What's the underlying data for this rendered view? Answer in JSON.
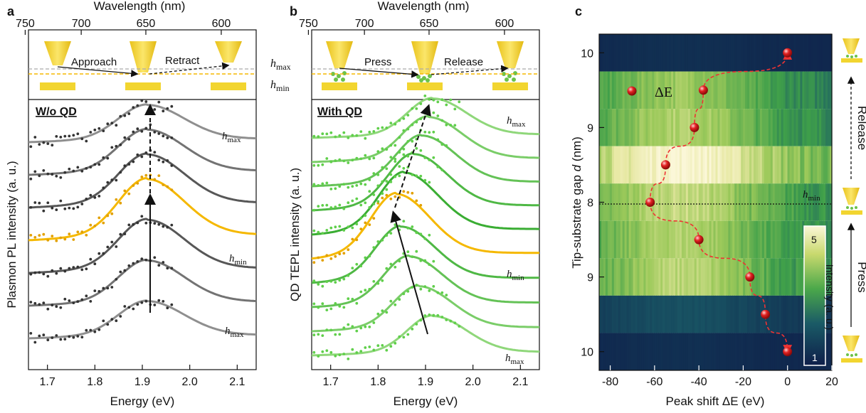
{
  "panels": {
    "a": {
      "letter": "a",
      "label": "W/o QD",
      "ylabel": "Plasmon PL intensity (a. u.)"
    },
    "b": {
      "letter": "b",
      "label": "With QD",
      "ylabel": "QD TEPL intensity (a. u.)"
    },
    "c": {
      "letter": "c"
    }
  },
  "labels": {
    "h_sym": "h",
    "max_sub": "max",
    "min_sub": "min",
    "approach": "Approach",
    "retract": "Retract",
    "press": "Press",
    "release": "Release",
    "delta_e": "ΔE",
    "intensity": "Intensity (a. u.)"
  },
  "colors": {
    "highlight": "#f5b800",
    "tip": "#f2d530",
    "gray_dark": "#3b3b3b",
    "gray_light": "#8f8f8f",
    "green_dark": "#2fa82a",
    "green_light": "#8fd77a",
    "sphere": "#e32222"
  },
  "chart_data": [
    {
      "type": "line",
      "panel": "a",
      "xlabel": "Energy (eV)",
      "ylabel": "Plasmon PL intensity (a. u.)",
      "xlim": [
        1.66,
        2.14
      ],
      "xticks": [
        1.7,
        1.8,
        1.9,
        2.0,
        2.1
      ],
      "top_axis_label": "Wavelength (nm)",
      "top_ticks_nm": [
        750,
        700,
        650,
        600
      ],
      "peak_centers": [
        1.91,
        1.91,
        1.91,
        1.91,
        1.91,
        1.91,
        1.91
      ],
      "highlight_index": 3,
      "annotations": [
        "h_max (top)",
        "h_min",
        "h_max (bottom)"
      ]
    },
    {
      "type": "line",
      "panel": "b",
      "xlabel": "Energy (eV)",
      "ylabel": "QD TEPL intensity (a. u.)",
      "xlim": [
        1.66,
        2.14
      ],
      "xticks": [
        1.7,
        1.8,
        1.9,
        2.0,
        2.1
      ],
      "top_axis_label": "Wavelength (nm)",
      "top_ticks_nm": [
        750,
        700,
        650,
        600
      ],
      "peak_centers": [
        1.915,
        1.885,
        1.865,
        1.848,
        1.838,
        1.855,
        1.875,
        1.892,
        1.905,
        1.915
      ],
      "highlight_index": 4,
      "annotations": [
        "h_max (top)",
        "h_min",
        "h_max (bottom)"
      ]
    },
    {
      "type": "heatmap",
      "panel": "c",
      "xlabel": "Peak shift ΔE (eV)",
      "ylabel": "Tip-substrate gap d (nm)",
      "xlim": [
        -85,
        20
      ],
      "xticks": [
        -80,
        -60,
        -40,
        -20,
        0,
        20
      ],
      "ytick_labels": [
        "10",
        "9",
        "8",
        "9",
        "10"
      ],
      "colorbar": {
        "min": 1,
        "max": 5,
        "label": "Intensity (a. u.)"
      },
      "row_brightness": [
        0.05,
        0.55,
        0.6,
        0.9,
        0.65,
        0.6,
        0.62,
        0.15,
        0.05
      ],
      "points": [
        {
          "x": 0,
          "gap": 10,
          "phase": "press"
        },
        {
          "x": -10,
          "gap": 9.5,
          "phase": "press"
        },
        {
          "x": -17,
          "gap": 9,
          "phase": "press"
        },
        {
          "x": -40,
          "gap": 8.5,
          "phase": "press"
        },
        {
          "x": -62,
          "gap": 8,
          "phase": "min"
        },
        {
          "x": -55,
          "gap": 8.5,
          "phase": "release"
        },
        {
          "x": -42,
          "gap": 9,
          "phase": "release"
        },
        {
          "x": -38,
          "gap": 9.5,
          "phase": "release"
        },
        {
          "x": 0,
          "gap": 10,
          "phase": "release"
        }
      ],
      "side_labels": [
        "Release",
        "Press"
      ],
      "h_min_line": 8
    }
  ]
}
